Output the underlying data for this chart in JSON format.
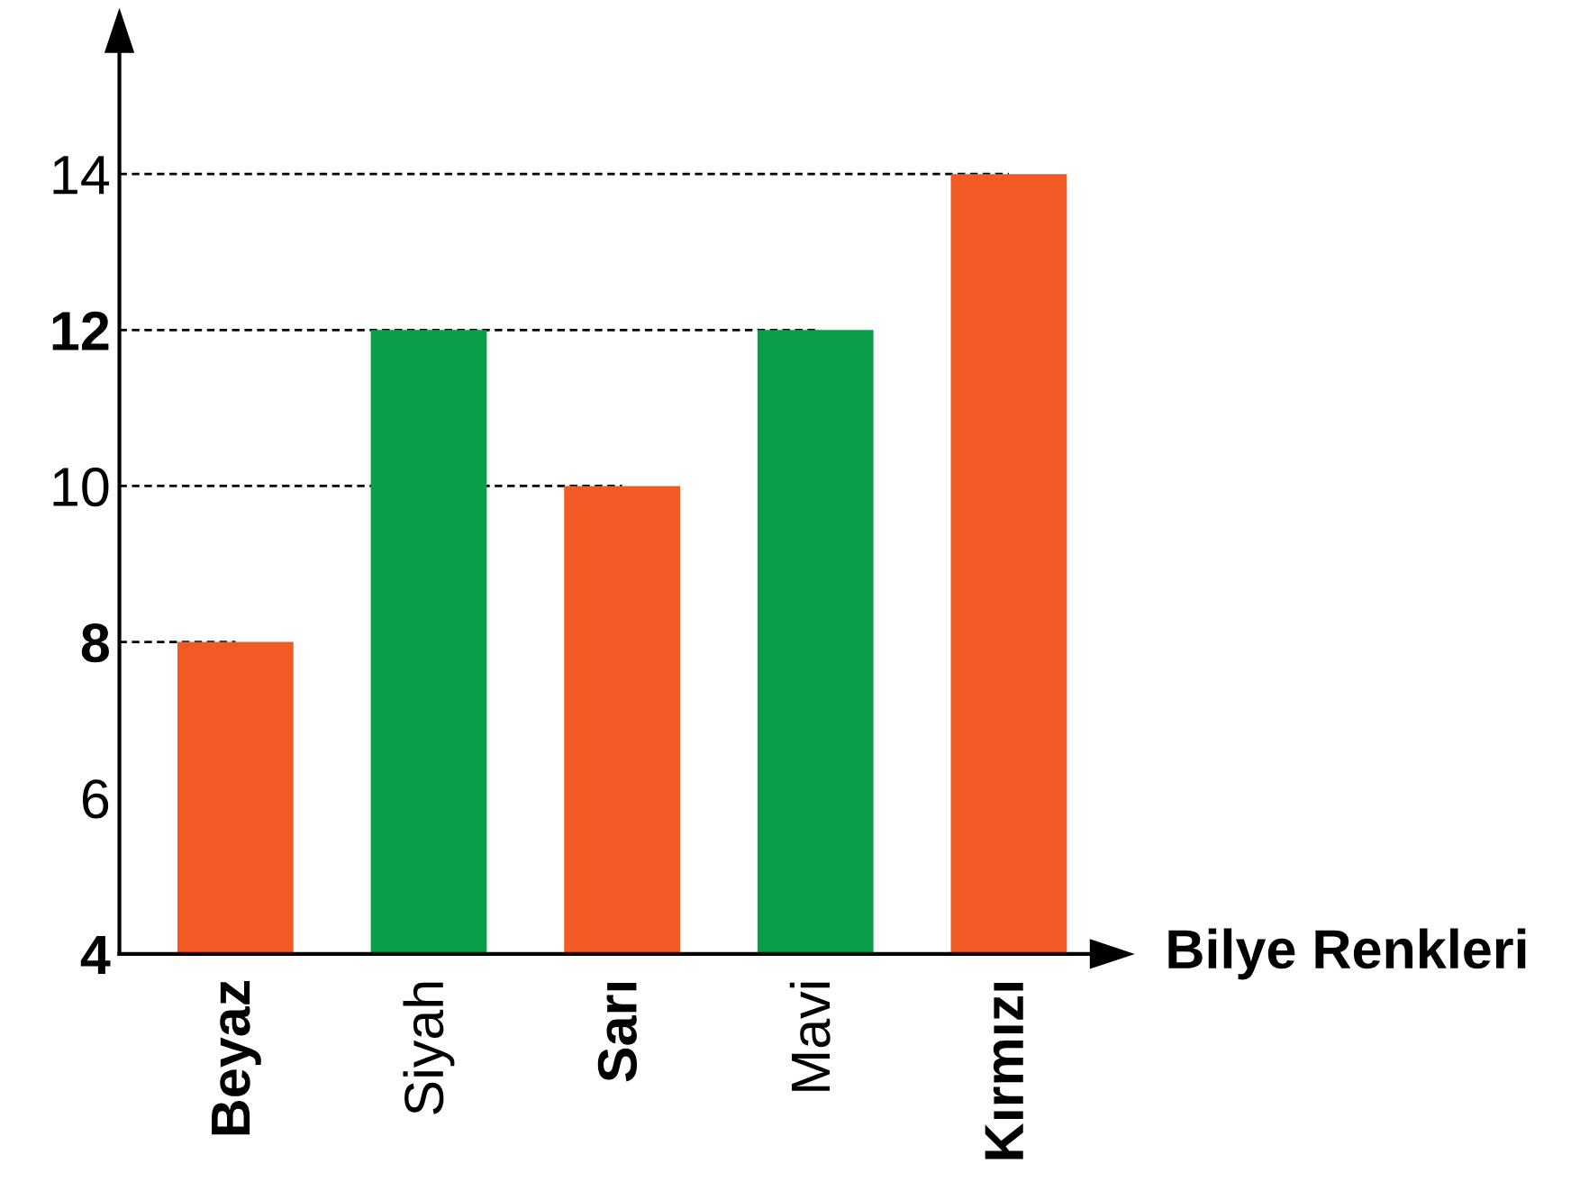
{
  "chart_data": {
    "type": "bar",
    "xlabel": "Bilye Renkleri",
    "categories": [
      "Beyaz",
      "Siyah",
      "Sarı",
      "Mavi",
      "Kırmızı"
    ],
    "values": [
      8,
      12,
      10,
      12,
      14
    ],
    "colors": [
      "#f15a24",
      "#0a9e4a",
      "#f15a24",
      "#0a9e4a",
      "#f15a24"
    ],
    "ylim": [
      4,
      16
    ],
    "yticks": [
      4,
      6,
      8,
      10,
      12,
      14
    ],
    "ref_lines": [
      {
        "axis": "y",
        "value": 8,
        "line_style": "dashed",
        "color": "#000000"
      },
      {
        "axis": "y",
        "value": 10,
        "line_style": "dashed",
        "color": "#000000"
      },
      {
        "axis": "y",
        "value": 12,
        "line_style": "dashed",
        "color": "#000000"
      },
      {
        "axis": "y",
        "value": 14,
        "line_style": "dashed",
        "color": "#000000"
      }
    ],
    "grid": false,
    "legend": false
  }
}
